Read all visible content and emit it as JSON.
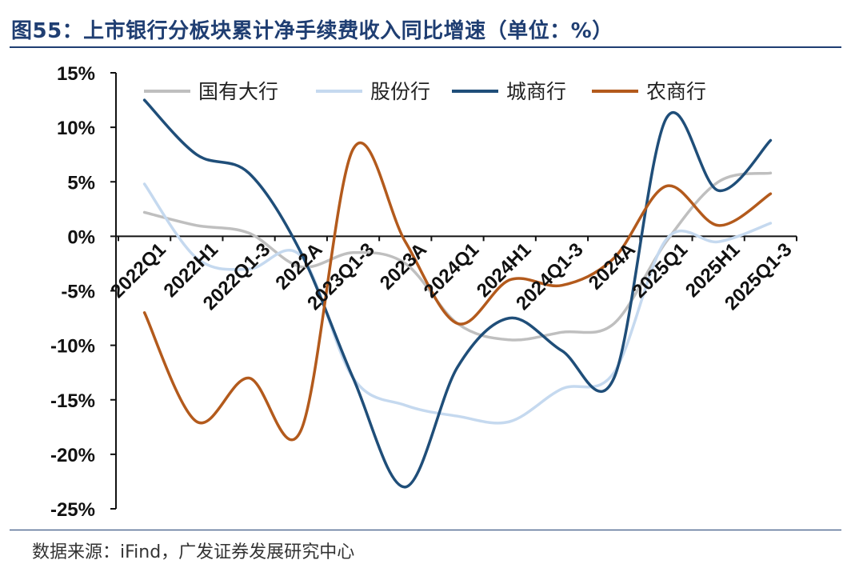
{
  "header": {
    "title": "图55：上市银行分板块累计净手续费收入同比增速（单位：%）",
    "source": "数据来源：iFind，广发证券发展研究中心"
  },
  "chart_data": {
    "type": "line",
    "smooth": true,
    "x": [
      "2022Q1",
      "2022H1",
      "2022Q1-3",
      "2022A",
      "2023Q1-3",
      "2023A",
      "2024Q1",
      "2024H1",
      "2024Q1-3",
      "2024A",
      "2025Q1",
      "2025H1",
      "2025Q1-3"
    ],
    "x_tick_labels_visible": [
      "2022Q1",
      "2022H1",
      "2022Q1-3",
      "2022A",
      "2023Q1-3",
      "2023A",
      "2024Q1",
      "2024H1",
      "2024Q1-3",
      "2024A",
      "2025Q1",
      "2025H1",
      "2025Q1-3"
    ],
    "yticks": [
      15,
      10,
      5,
      0,
      -5,
      -10,
      -15,
      -20,
      -25
    ],
    "ytick_labels": [
      "15%",
      "10%",
      "5%",
      "0%",
      "-5%",
      "-10%",
      "-15%",
      "-20%",
      "-25%"
    ],
    "ylim": [
      -25,
      15
    ],
    "grid": false,
    "legend_position": "top",
    "series": [
      {
        "name": "国有大行",
        "color": "#bfbfbf",
        "values": [
          2.2,
          1.0,
          0.3,
          -2.8,
          -1.5,
          -2.5,
          -8.0,
          -9.5,
          -8.8,
          -8.0,
          -0.5,
          5.0,
          5.8
        ]
      },
      {
        "name": "股份行",
        "color": "#c5d9ef",
        "values": [
          4.8,
          -2.0,
          -3.0,
          -1.8,
          -13.0,
          -15.5,
          -16.5,
          -17.0,
          -14.0,
          -12.5,
          -0.3,
          -0.5,
          1.2
        ]
      },
      {
        "name": "城商行",
        "color": "#1f4e79",
        "values": [
          12.5,
          7.5,
          5.8,
          -1.5,
          -13.0,
          -23.0,
          -12.0,
          -7.5,
          -10.5,
          -13.0,
          10.8,
          4.2,
          8.8
        ]
      },
      {
        "name": "农商行",
        "color": "#b35a1c",
        "values": [
          -7.0,
          -17.0,
          -13.0,
          -17.8,
          8.0,
          -0.5,
          -8.0,
          -4.0,
          -4.5,
          -2.0,
          4.6,
          1.0,
          3.9
        ]
      }
    ]
  }
}
